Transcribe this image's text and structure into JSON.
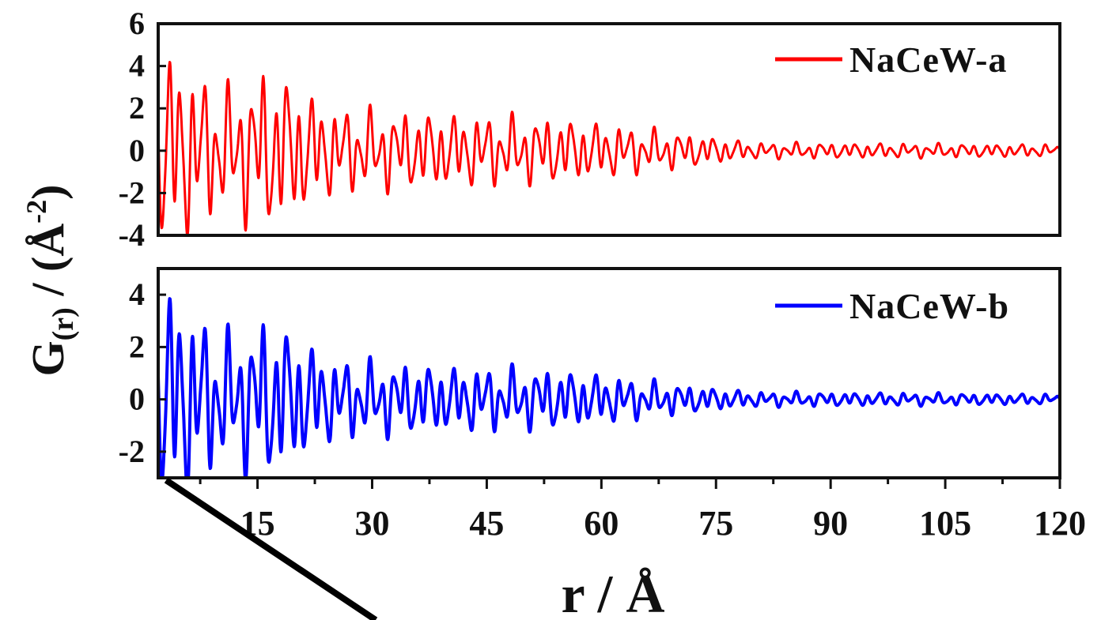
{
  "chart_data": {
    "type": "line",
    "xlabel": "r / Å",
    "ylabel_main": "G",
    "ylabel_sub": "(r)",
    "ylabel_rest": " / (Å",
    "ylabel_exp": "-2",
    "ylabel_close": ")",
    "xlim": [
      2,
      120
    ],
    "xticks": [
      15,
      30,
      45,
      60,
      75,
      90,
      105,
      120
    ],
    "panels": [
      {
        "name": "NaCeW-a",
        "color": "#ff0000",
        "legend_position": "top-right",
        "ylim": [
          -4,
          6
        ],
        "yticks": [
          -4,
          -2,
          0,
          2,
          4,
          6
        ],
        "envelope": [
          [
            2.3,
            4.5
          ],
          [
            3.2,
            5.0
          ],
          [
            10,
            3.0
          ],
          [
            16.8,
            4.0
          ],
          [
            25,
            2.1
          ],
          [
            40,
            1.8
          ],
          [
            54,
            1.6
          ],
          [
            70,
            0.9
          ],
          [
            80,
            0.4
          ],
          [
            120,
            0.3
          ]
        ]
      },
      {
        "name": "NaCeW-b",
        "color": "#0000ff",
        "legend_position": "top-right",
        "ylim": [
          -3,
          5
        ],
        "yticks": [
          -2,
          0,
          2,
          4
        ],
        "envelope": [
          [
            2.3,
            3.8
          ],
          [
            3.2,
            4.6
          ],
          [
            10,
            2.6
          ],
          [
            16.8,
            3.2
          ],
          [
            25,
            1.6
          ],
          [
            40,
            1.3
          ],
          [
            54,
            1.2
          ],
          [
            70,
            0.6
          ],
          [
            80,
            0.3
          ],
          [
            120,
            0.2
          ]
        ]
      }
    ]
  }
}
